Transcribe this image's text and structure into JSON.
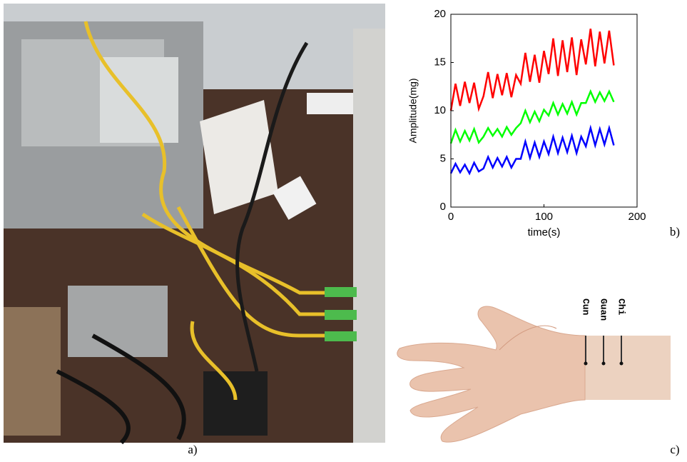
{
  "chart_data": {
    "type": "line",
    "xlabel": "time(s)",
    "ylabel": "Amplitude(mg)",
    "xlim": [
      0,
      200
    ],
    "xticks": [
      0,
      100,
      200
    ],
    "ylim": [
      0,
      20
    ],
    "yticks": [
      0,
      5,
      10,
      15,
      20
    ],
    "x": [
      0,
      5,
      10,
      15,
      20,
      25,
      30,
      35,
      40,
      45,
      50,
      55,
      60,
      65,
      70,
      75,
      80,
      85,
      90,
      95,
      100,
      105,
      110,
      115,
      120,
      125,
      130,
      135,
      140,
      145,
      150,
      155,
      160,
      165,
      170,
      175
    ],
    "series": [
      {
        "color": "#ff0000",
        "values": [
          10,
          12.8,
          10.5,
          13,
          10.8,
          12.9,
          10.2,
          11.5,
          14,
          11.3,
          13.8,
          11.6,
          13.9,
          11.4,
          13.7,
          12.8,
          16,
          13,
          15.8,
          12.9,
          16.2,
          13.8,
          17.5,
          13.6,
          17.3,
          14,
          17.6,
          13.7,
          17.4,
          14.8,
          18.5,
          14.6,
          18.2,
          14.9,
          18.3,
          14.7
        ]
      },
      {
        "color": "#00ff00",
        "values": [
          6.6,
          8,
          6.8,
          7.9,
          6.9,
          8.1,
          6.7,
          7.3,
          8.2,
          7.4,
          8.1,
          7.3,
          8.3,
          7.5,
          8.2,
          8.7,
          10,
          8.8,
          9.9,
          8.9,
          10.1,
          9.5,
          10.8,
          9.6,
          10.7,
          9.7,
          10.9,
          9.6,
          10.8,
          10.8,
          12,
          10.9,
          11.9,
          11,
          12,
          10.9
        ]
      },
      {
        "color": "#0000ff",
        "values": [
          3.5,
          4.5,
          3.6,
          4.4,
          3.5,
          4.6,
          3.7,
          4,
          5.2,
          4.1,
          5.1,
          4.2,
          5.2,
          4.1,
          5,
          5,
          6.8,
          5.1,
          6.7,
          5.2,
          6.8,
          5.5,
          7.3,
          5.6,
          7.2,
          5.7,
          7.4,
          5.6,
          7.3,
          6.3,
          8.2,
          6.4,
          8.1,
          6.5,
          8.2,
          6.4
        ]
      }
    ]
  },
  "panels": {
    "a": {
      "label": "a)"
    },
    "b": {
      "label": "b)"
    },
    "c": {
      "label": "c)",
      "points": [
        "Cun",
        "Guan",
        "Chi"
      ]
    }
  }
}
